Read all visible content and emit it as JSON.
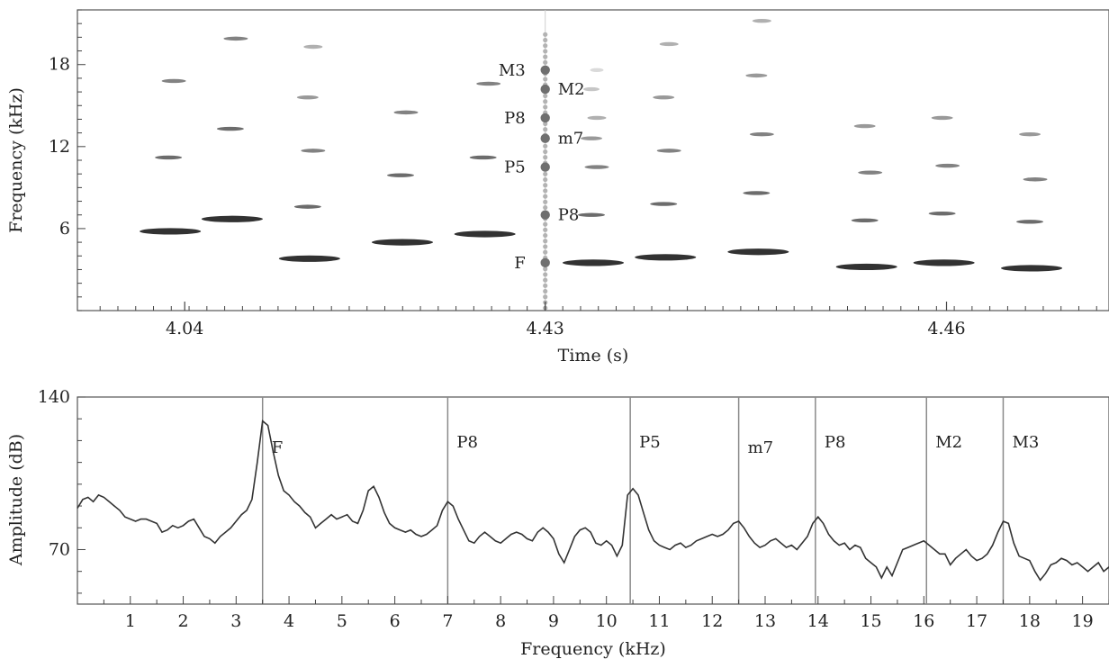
{
  "chart_data": [
    {
      "type": "heatmap",
      "xlabel": "Time (s)",
      "ylabel": "Frequency (kHz)",
      "x_ticks": [
        "4.04",
        "4.43",
        "4.46"
      ],
      "y_ticks": [
        6,
        12,
        18
      ],
      "ylim": [
        0,
        22
      ],
      "colormap": "grayscale (dark = high energy)",
      "grid": false,
      "marker_line": {
        "position": "at the 4.43 tick",
        "points": [
          {
            "label": "M3",
            "freq": 17.6
          },
          {
            "label": "M2",
            "freq": 16.2
          },
          {
            "label": "P8",
            "freq": 14.1
          },
          {
            "label": "m7",
            "freq": 12.6
          },
          {
            "label": "P5",
            "freq": 10.5
          },
          {
            "label": "P8",
            "freq": 7.0
          },
          {
            "label": "F",
            "freq": 3.5
          }
        ]
      },
      "calls": [
        {
          "t": 0.09,
          "fundamental": 5.8,
          "harmonics": [
            11.2,
            16.8
          ]
        },
        {
          "t": 0.15,
          "fundamental": 6.7,
          "harmonics": [
            13.3,
            19.9
          ]
        },
        {
          "t": 0.225,
          "fundamental": 3.8,
          "harmonics": [
            7.6,
            11.7,
            15.6,
            19.3
          ]
        },
        {
          "t": 0.315,
          "fundamental": 5.0,
          "harmonics": [
            9.9,
            14.5
          ]
        },
        {
          "t": 0.395,
          "fundamental": 5.6,
          "harmonics": [
            11.2,
            16.6
          ]
        },
        {
          "t": 0.5,
          "fundamental": 3.5,
          "harmonics": [
            7.0,
            10.5,
            12.6,
            14.1,
            16.2,
            17.6
          ]
        },
        {
          "t": 0.57,
          "fundamental": 3.9,
          "harmonics": [
            7.8,
            11.7,
            15.6,
            19.5
          ]
        },
        {
          "t": 0.66,
          "fundamental": 4.3,
          "harmonics": [
            8.6,
            12.9,
            17.2,
            21.2
          ]
        },
        {
          "t": 0.765,
          "fundamental": 3.2,
          "harmonics": [
            6.6,
            10.1,
            13.5
          ]
        },
        {
          "t": 0.84,
          "fundamental": 3.5,
          "harmonics": [
            7.1,
            10.6,
            14.1
          ]
        },
        {
          "t": 0.925,
          "fundamental": 3.1,
          "harmonics": [
            6.5,
            9.6,
            12.9
          ]
        }
      ]
    },
    {
      "type": "line",
      "xlabel": "Frequency (kHz)",
      "ylabel": "Amplitude (dB)",
      "x_ticks": [
        1,
        2,
        3,
        4,
        5,
        6,
        7,
        8,
        9,
        10,
        11,
        12,
        13,
        14,
        15,
        16,
        17,
        18,
        19
      ],
      "y_ticks": [
        70,
        140
      ],
      "xlim": [
        0,
        19.5
      ],
      "ylim": [
        45,
        140
      ],
      "grid": false,
      "harmonic_lines": [
        {
          "label": "F",
          "x": 3.5
        },
        {
          "label": "P8",
          "x": 7.0
        },
        {
          "label": "P5",
          "x": 10.45
        },
        {
          "label": "m7",
          "x": 12.5
        },
        {
          "label": "P8",
          "x": 13.95
        },
        {
          "label": "M2",
          "x": 16.05
        },
        {
          "label": "M3",
          "x": 17.5
        }
      ],
      "series": [
        {
          "points": [
            [
              0.0,
              89
            ],
            [
              0.1,
              93
            ],
            [
              0.2,
              94
            ],
            [
              0.3,
              92
            ],
            [
              0.4,
              95
            ],
            [
              0.5,
              94
            ],
            [
              0.6,
              92
            ],
            [
              0.7,
              90
            ],
            [
              0.8,
              88
            ],
            [
              0.9,
              85
            ],
            [
              1.0,
              84
            ],
            [
              1.1,
              83
            ],
            [
              1.2,
              84
            ],
            [
              1.3,
              84
            ],
            [
              1.4,
              83
            ],
            [
              1.5,
              82
            ],
            [
              1.6,
              78
            ],
            [
              1.7,
              79
            ],
            [
              1.8,
              81
            ],
            [
              1.9,
              80
            ],
            [
              2.0,
              81
            ],
            [
              2.1,
              83
            ],
            [
              2.2,
              84
            ],
            [
              2.3,
              80
            ],
            [
              2.4,
              76
            ],
            [
              2.5,
              75
            ],
            [
              2.6,
              73
            ],
            [
              2.7,
              76
            ],
            [
              2.8,
              78
            ],
            [
              2.9,
              80
            ],
            [
              3.0,
              83
            ],
            [
              3.1,
              86
            ],
            [
              3.2,
              88
            ],
            [
              3.3,
              93
            ],
            [
              3.4,
              110
            ],
            [
              3.5,
              129
            ],
            [
              3.6,
              127
            ],
            [
              3.7,
              115
            ],
            [
              3.8,
              104
            ],
            [
              3.9,
              97
            ],
            [
              4.0,
              95
            ],
            [
              4.1,
              92
            ],
            [
              4.2,
              90
            ],
            [
              4.3,
              87
            ],
            [
              4.4,
              85
            ],
            [
              4.5,
              80
            ],
            [
              4.6,
              82
            ],
            [
              4.7,
              84
            ],
            [
              4.8,
              86
            ],
            [
              4.9,
              84
            ],
            [
              5.0,
              85
            ],
            [
              5.1,
              86
            ],
            [
              5.2,
              83
            ],
            [
              5.3,
              82
            ],
            [
              5.4,
              88
            ],
            [
              5.5,
              97
            ],
            [
              5.6,
              99
            ],
            [
              5.7,
              94
            ],
            [
              5.8,
              87
            ],
            [
              5.9,
              82
            ],
            [
              6.0,
              80
            ],
            [
              6.1,
              79
            ],
            [
              6.2,
              78
            ],
            [
              6.3,
              79
            ],
            [
              6.4,
              77
            ],
            [
              6.5,
              76
            ],
            [
              6.6,
              77
            ],
            [
              6.7,
              79
            ],
            [
              6.8,
              81
            ],
            [
              6.9,
              88
            ],
            [
              7.0,
              92
            ],
            [
              7.1,
              90
            ],
            [
              7.2,
              84
            ],
            [
              7.3,
              79
            ],
            [
              7.4,
              74
            ],
            [
              7.5,
              73
            ],
            [
              7.6,
              76
            ],
            [
              7.7,
              78
            ],
            [
              7.8,
              76
            ],
            [
              7.9,
              74
            ],
            [
              8.0,
              73
            ],
            [
              8.1,
              75
            ],
            [
              8.2,
              77
            ],
            [
              8.3,
              78
            ],
            [
              8.4,
              77
            ],
            [
              8.5,
              75
            ],
            [
              8.6,
              74
            ],
            [
              8.7,
              78
            ],
            [
              8.8,
              80
            ],
            [
              8.9,
              78
            ],
            [
              9.0,
              75
            ],
            [
              9.1,
              68
            ],
            [
              9.2,
              64
            ],
            [
              9.3,
              70
            ],
            [
              9.4,
              76
            ],
            [
              9.5,
              79
            ],
            [
              9.6,
              80
            ],
            [
              9.7,
              78
            ],
            [
              9.8,
              73
            ],
            [
              9.9,
              72
            ],
            [
              10.0,
              74
            ],
            [
              10.1,
              72
            ],
            [
              10.2,
              67
            ],
            [
              10.3,
              72
            ],
            [
              10.4,
              95
            ],
            [
              10.5,
              98
            ],
            [
              10.6,
              95
            ],
            [
              10.7,
              87
            ],
            [
              10.8,
              79
            ],
            [
              10.9,
              74
            ],
            [
              11.0,
              72
            ],
            [
              11.1,
              71
            ],
            [
              11.2,
              70
            ],
            [
              11.3,
              72
            ],
            [
              11.4,
              73
            ],
            [
              11.5,
              71
            ],
            [
              11.6,
              72
            ],
            [
              11.7,
              74
            ],
            [
              11.8,
              75
            ],
            [
              11.9,
              76
            ],
            [
              12.0,
              77
            ],
            [
              12.1,
              76
            ],
            [
              12.2,
              77
            ],
            [
              12.3,
              79
            ],
            [
              12.4,
              82
            ],
            [
              12.5,
              83
            ],
            [
              12.6,
              80
            ],
            [
              12.7,
              76
            ],
            [
              12.8,
              73
            ],
            [
              12.9,
              71
            ],
            [
              13.0,
              72
            ],
            [
              13.1,
              74
            ],
            [
              13.2,
              75
            ],
            [
              13.3,
              73
            ],
            [
              13.4,
              71
            ],
            [
              13.5,
              72
            ],
            [
              13.6,
              70
            ],
            [
              13.7,
              73
            ],
            [
              13.8,
              76
            ],
            [
              13.9,
              82
            ],
            [
              14.0,
              85
            ],
            [
              14.1,
              82
            ],
            [
              14.2,
              77
            ],
            [
              14.3,
              74
            ],
            [
              14.4,
              72
            ],
            [
              14.5,
              73
            ],
            [
              14.6,
              70
            ],
            [
              14.7,
              72
            ],
            [
              14.8,
              71
            ],
            [
              14.9,
              66
            ],
            [
              15.0,
              64
            ],
            [
              15.1,
              62
            ],
            [
              15.2,
              57
            ],
            [
              15.3,
              62
            ],
            [
              15.4,
              58
            ],
            [
              15.5,
              64
            ],
            [
              15.6,
              70
            ],
            [
              15.7,
              71
            ],
            [
              15.8,
              72
            ],
            [
              15.9,
              73
            ],
            [
              16.0,
              74
            ],
            [
              16.1,
              72
            ],
            [
              16.2,
              70
            ],
            [
              16.3,
              68
            ],
            [
              16.4,
              68
            ],
            [
              16.5,
              63
            ],
            [
              16.6,
              66
            ],
            [
              16.7,
              68
            ],
            [
              16.8,
              70
            ],
            [
              16.9,
              67
            ],
            [
              17.0,
              65
            ],
            [
              17.1,
              66
            ],
            [
              17.2,
              68
            ],
            [
              17.3,
              72
            ],
            [
              17.4,
              78
            ],
            [
              17.5,
              83
            ],
            [
              17.6,
              82
            ],
            [
              17.7,
              73
            ],
            [
              17.8,
              67
            ],
            [
              17.9,
              66
            ],
            [
              18.0,
              65
            ],
            [
              18.1,
              60
            ],
            [
              18.2,
              56
            ],
            [
              18.3,
              59
            ],
            [
              18.4,
              63
            ],
            [
              18.5,
              64
            ],
            [
              18.6,
              66
            ],
            [
              18.7,
              65
            ],
            [
              18.8,
              63
            ],
            [
              18.9,
              64
            ],
            [
              19.0,
              62
            ],
            [
              19.1,
              60
            ],
            [
              19.2,
              62
            ],
            [
              19.3,
              64
            ],
            [
              19.4,
              60
            ],
            [
              19.5,
              62
            ]
          ]
        }
      ]
    }
  ]
}
